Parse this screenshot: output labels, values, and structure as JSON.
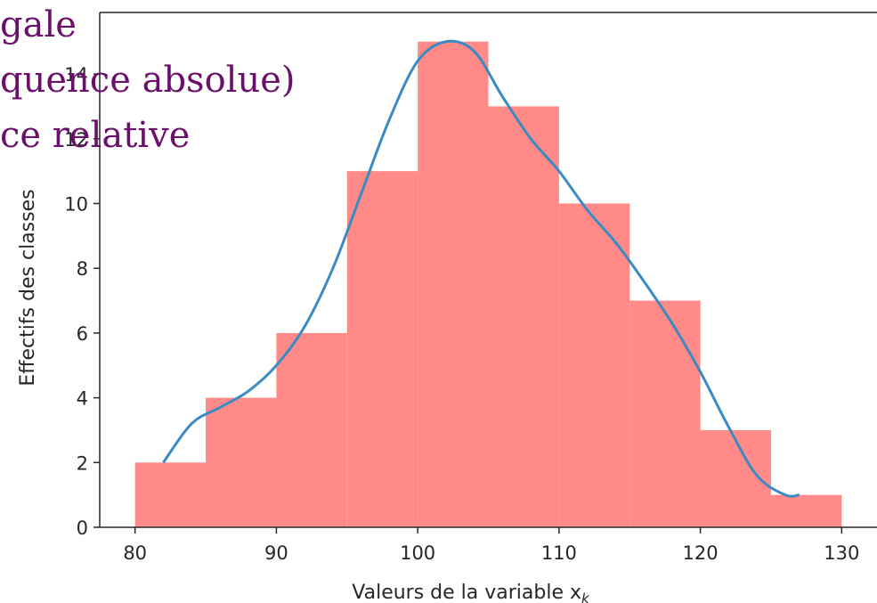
{
  "overlay_text": {
    "line1": "gale",
    "line2": "quence absolue)",
    "line3": "ce relative",
    "color": "#6a0f6a"
  },
  "chart_data": {
    "type": "bar",
    "bins": [
      [
        80,
        85
      ],
      [
        85,
        90
      ],
      [
        90,
        95
      ],
      [
        95,
        100
      ],
      [
        100,
        105
      ],
      [
        105,
        110
      ],
      [
        110,
        115
      ],
      [
        115,
        120
      ],
      [
        120,
        125
      ],
      [
        125,
        130
      ]
    ],
    "values": [
      2,
      4,
      6,
      11,
      15,
      13,
      10,
      7,
      3,
      1
    ],
    "density_curve": {
      "x": [
        82,
        84,
        86,
        88,
        90,
        92,
        94,
        96,
        98,
        100,
        102,
        104,
        106,
        108,
        110,
        112,
        114,
        116,
        118,
        120,
        122,
        124,
        126,
        127
      ],
      "y": [
        2,
        3.2,
        3.7,
        4.2,
        5,
        6.2,
        8,
        10.3,
        12.6,
        14.4,
        15,
        14.7,
        13.3,
        12,
        11,
        9.8,
        8.8,
        7.6,
        6.3,
        4.8,
        3.1,
        1.6,
        1,
        1
      ]
    },
    "xlabel": "Valeurs de la variable x",
    "xlabel_subscript": "k",
    "ylabel": "Effectifs des classes",
    "xlim": [
      77.5,
      132.5
    ],
    "ylim": [
      0,
      15.9
    ],
    "x_ticks": [
      "80",
      "90",
      "100",
      "110",
      "120",
      "130"
    ],
    "y_ticks": [
      "0",
      "2",
      "4",
      "6",
      "8",
      "10",
      "12",
      "14"
    ],
    "bar_color": "#ff8a87",
    "line_color": "#3c8ac4",
    "grid": false
  }
}
